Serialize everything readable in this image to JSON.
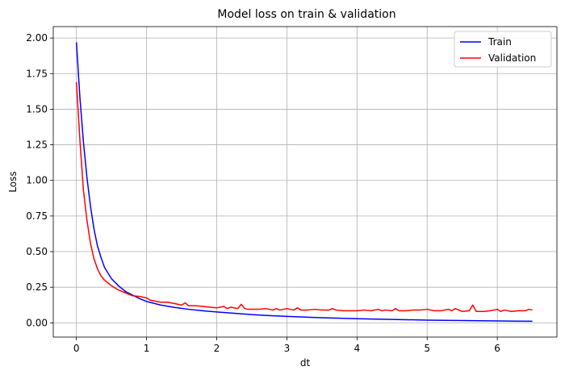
{
  "chart_data": {
    "type": "line",
    "title": "Model loss on train & validation",
    "xlabel": "dt",
    "ylabel": "Loss",
    "xlim": [
      -0.33,
      6.85
    ],
    "ylim": [
      -0.1,
      2.08
    ],
    "x_ticks": [
      0,
      1,
      2,
      3,
      4,
      5,
      6
    ],
    "x_tick_labels": [
      "0",
      "1",
      "2",
      "3",
      "4",
      "5",
      "6"
    ],
    "y_ticks": [
      0.0,
      0.25,
      0.5,
      0.75,
      1.0,
      1.25,
      1.5,
      1.75,
      2.0
    ],
    "y_tick_labels": [
      "0.00",
      "0.25",
      "0.50",
      "0.75",
      "1.00",
      "1.25",
      "1.50",
      "1.75",
      "2.00"
    ],
    "grid": true,
    "legend_position": "top-right",
    "series": [
      {
        "name": "Train",
        "color": "#0000ff",
        "x": [
          0,
          0.05,
          0.1,
          0.15,
          0.2,
          0.25,
          0.3,
          0.35,
          0.4,
          0.5,
          0.6,
          0.7,
          0.8,
          0.9,
          1.0,
          1.2,
          1.4,
          1.6,
          1.8,
          2.0,
          2.25,
          2.5,
          2.75,
          3.0,
          3.5,
          4.0,
          4.5,
          5.0,
          5.5,
          6.0,
          6.5
        ],
        "y": [
          1.97,
          1.58,
          1.27,
          1.02,
          0.82,
          0.66,
          0.54,
          0.46,
          0.39,
          0.31,
          0.26,
          0.22,
          0.195,
          0.17,
          0.15,
          0.125,
          0.108,
          0.095,
          0.085,
          0.076,
          0.067,
          0.058,
          0.051,
          0.045,
          0.036,
          0.029,
          0.024,
          0.019,
          0.016,
          0.013,
          0.011
        ]
      },
      {
        "name": "Validation",
        "color": "#ff0000",
        "x": [
          0,
          0.05,
          0.1,
          0.15,
          0.2,
          0.25,
          0.3,
          0.35,
          0.4,
          0.5,
          0.6,
          0.7,
          0.8,
          0.9,
          1.0,
          1.05,
          1.1,
          1.2,
          1.3,
          1.4,
          1.5,
          1.55,
          1.6,
          1.7,
          1.8,
          1.9,
          2.0,
          2.1,
          2.15,
          2.2,
          2.3,
          2.35,
          2.4,
          2.45,
          2.5,
          2.6,
          2.7,
          2.8,
          2.85,
          2.9,
          3.0,
          3.1,
          3.15,
          3.2,
          3.3,
          3.4,
          3.5,
          3.6,
          3.65,
          3.7,
          3.8,
          3.9,
          4.0,
          4.1,
          4.2,
          4.3,
          4.35,
          4.4,
          4.5,
          4.55,
          4.6,
          4.7,
          4.8,
          4.9,
          5.0,
          5.1,
          5.2,
          5.3,
          5.35,
          5.4,
          5.5,
          5.6,
          5.65,
          5.7,
          5.8,
          5.9,
          6.0,
          6.05,
          6.1,
          6.2,
          6.3,
          6.4,
          6.45,
          6.5
        ],
        "y": [
          1.69,
          1.28,
          0.93,
          0.72,
          0.56,
          0.45,
          0.38,
          0.33,
          0.3,
          0.26,
          0.23,
          0.21,
          0.19,
          0.185,
          0.175,
          0.16,
          0.155,
          0.145,
          0.145,
          0.135,
          0.125,
          0.14,
          0.12,
          0.12,
          0.115,
          0.11,
          0.105,
          0.115,
          0.1,
          0.11,
          0.1,
          0.13,
          0.1,
          0.095,
          0.095,
          0.095,
          0.1,
          0.09,
          0.1,
          0.09,
          0.1,
          0.09,
          0.105,
          0.09,
          0.09,
          0.095,
          0.09,
          0.09,
          0.1,
          0.09,
          0.085,
          0.085,
          0.085,
          0.09,
          0.085,
          0.095,
          0.085,
          0.09,
          0.085,
          0.1,
          0.085,
          0.085,
          0.09,
          0.09,
          0.095,
          0.085,
          0.085,
          0.095,
          0.085,
          0.1,
          0.08,
          0.085,
          0.125,
          0.08,
          0.08,
          0.085,
          0.095,
          0.08,
          0.09,
          0.08,
          0.085,
          0.085,
          0.095,
          0.09
        ]
      }
    ]
  }
}
